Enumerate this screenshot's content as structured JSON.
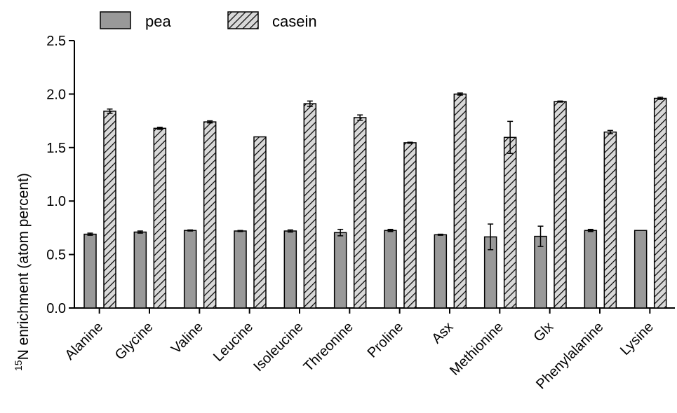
{
  "chart_data": {
    "type": "bar",
    "categories": [
      "Alanine",
      "Glycine",
      "Valine",
      "Leucine",
      "Isoleucine",
      "Threonine",
      "Proline",
      "Asx",
      "Methionine",
      "Glx",
      "Phenylalanine",
      "Lysine"
    ],
    "series": [
      {
        "name": "pea",
        "values": [
          0.69,
          0.71,
          0.725,
          0.72,
          0.72,
          0.705,
          0.725,
          0.685,
          0.665,
          0.67,
          0.725,
          0.725
        ],
        "errors": [
          0.01,
          0.01,
          0.005,
          0.005,
          0.01,
          0.03,
          0.01,
          0.005,
          0.12,
          0.095,
          0.01,
          0.0
        ],
        "color": "#999999",
        "pattern": "solid"
      },
      {
        "name": "casein",
        "values": [
          1.84,
          1.68,
          1.74,
          1.6,
          1.91,
          1.78,
          1.545,
          2.0,
          1.595,
          1.93,
          1.645,
          1.96
        ],
        "errors": [
          0.02,
          0.01,
          0.01,
          0.0,
          0.025,
          0.025,
          0.005,
          0.01,
          0.15,
          0.005,
          0.015,
          0.01
        ],
        "color": "#d9d9d9",
        "pattern": "hatched"
      }
    ],
    "ylabel_superscript": "15",
    "ylabel": "N enrichment (atom percent)",
    "xlabel": "",
    "ylim": [
      0.0,
      2.5
    ],
    "yticks": [
      "0.0",
      "0.5",
      "1.0",
      "1.5",
      "2.0",
      "2.5"
    ],
    "grid": false,
    "legend_position": "top-left"
  }
}
